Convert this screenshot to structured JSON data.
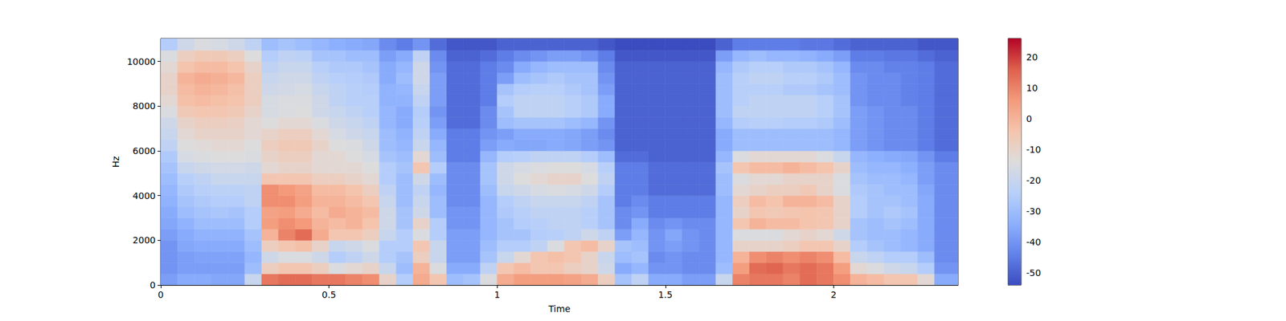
{
  "chart_data": {
    "type": "heatmap",
    "xlabel": "Time",
    "ylabel": "Hz",
    "xlim": [
      0,
      2.37
    ],
    "ylim": [
      0,
      11025
    ],
    "xticks": [
      0,
      0.5,
      1,
      1.5,
      2
    ],
    "yticks": [
      0,
      2000,
      4000,
      6000,
      8000,
      10000
    ],
    "x_edges": [
      0,
      0.05,
      0.1,
      0.15,
      0.2,
      0.25,
      0.3,
      0.35,
      0.4,
      0.45,
      0.5,
      0.55,
      0.6,
      0.65,
      0.7,
      0.75,
      0.8,
      0.85,
      0.9,
      0.95,
      1,
      1.05,
      1.1,
      1.15,
      1.2,
      1.25,
      1.3,
      1.35,
      1.4,
      1.45,
      1.5,
      1.55,
      1.6,
      1.65,
      1.7,
      1.75,
      1.8,
      1.85,
      1.9,
      1.95,
      2,
      2.05,
      2.1,
      2.15,
      2.2,
      2.25,
      2.3,
      2.37
    ],
    "y_edges": [
      0,
      500,
      1000,
      1500,
      2000,
      2500,
      3000,
      3500,
      4000,
      4500,
      5000,
      5500,
      6000,
      6500,
      7000,
      7500,
      8000,
      8500,
      9000,
      9500,
      10000,
      10500,
      11025
    ],
    "cells": [
      [
        -38,
        -40,
        -40,
        -40,
        -38,
        -36,
        -35,
        -33,
        -32,
        -30,
        -28,
        -26,
        -22,
        -20,
        -18,
        -15,
        -12,
        -10,
        -10,
        -12,
        -15,
        -25
      ],
      [
        -35,
        -38,
        -38,
        -36,
        -35,
        -33,
        -30,
        -28,
        -26,
        -24,
        -20,
        -16,
        -14,
        -12,
        -10,
        -6,
        -3,
        -2,
        0,
        -4,
        -8,
        -18
      ],
      [
        -35,
        -38,
        -37,
        -35,
        -33,
        -30,
        -28,
        -26,
        -24,
        -22,
        -18,
        -15,
        -13,
        -10,
        -8,
        -5,
        -2,
        0,
        2,
        -2,
        -6,
        -15
      ],
      [
        -36,
        -38,
        -37,
        -35,
        -33,
        -30,
        -27,
        -25,
        -23,
        -20,
        -17,
        -14,
        -12,
        -10,
        -8,
        -5,
        -3,
        -1,
        1,
        -2,
        -6,
        -16
      ],
      [
        -36,
        -38,
        -37,
        -35,
        -33,
        -30,
        -28,
        -25,
        -23,
        -20,
        -17,
        -14,
        -12,
        -10,
        -9,
        -6,
        -4,
        -3,
        -1,
        -4,
        -8,
        -18
      ],
      [
        -20,
        -30,
        -32,
        -30,
        -28,
        -25,
        -25,
        -22,
        -22,
        -20,
        -18,
        -15,
        -14,
        -12,
        -12,
        -10,
        -8,
        -8,
        -8,
        -10,
        -14,
        -22
      ],
      [
        12,
        -8,
        -18,
        -8,
        0,
        5,
        4,
        8,
        8,
        -5,
        -12,
        -10,
        -8,
        -10,
        -14,
        -16,
        -16,
        -18,
        -20,
        -22,
        -25,
        -30
      ],
      [
        14,
        -5,
        -15,
        -5,
        10,
        8,
        5,
        8,
        6,
        -5,
        -10,
        -8,
        -6,
        -8,
        -12,
        -15,
        -15,
        -17,
        -18,
        -20,
        -22,
        -28
      ],
      [
        14,
        -5,
        -15,
        -3,
        14,
        6,
        2,
        5,
        4,
        -5,
        -10,
        -8,
        -6,
        -8,
        -12,
        -14,
        -15,
        -16,
        -18,
        -20,
        -23,
        -30
      ],
      [
        12,
        -8,
        -18,
        -10,
        2,
        0,
        -2,
        0,
        -2,
        -8,
        -12,
        -12,
        -10,
        -12,
        -15,
        -18,
        -18,
        -20,
        -22,
        -24,
        -28,
        -32
      ],
      [
        12,
        -15,
        -25,
        -20,
        -5,
        -2,
        2,
        0,
        -2,
        -8,
        -12,
        -12,
        -14,
        -16,
        -18,
        -20,
        -22,
        -22,
        -24,
        -26,
        -28,
        -34
      ],
      [
        10,
        -12,
        -22,
        -18,
        -5,
        0,
        0,
        -2,
        -4,
        -10,
        -12,
        -14,
        -15,
        -18,
        -20,
        -22,
        -24,
        -24,
        -25,
        -26,
        -30,
        -35
      ],
      [
        8,
        -10,
        -18,
        -15,
        -8,
        -4,
        -2,
        -5,
        -8,
        -12,
        -14,
        -16,
        -18,
        -20,
        -22,
        -24,
        -24,
        -25,
        -26,
        -28,
        -30,
        -36
      ],
      [
        -10,
        -20,
        -25,
        -25,
        -20,
        -18,
        -18,
        -20,
        -22,
        -25,
        -25,
        -28,
        -30,
        -30,
        -32,
        -32,
        -33,
        -33,
        -35,
        -35,
        -38,
        -42
      ],
      [
        -25,
        -30,
        -28,
        -25,
        -25,
        -28,
        -28,
        -30,
        -30,
        -30,
        -28,
        -30,
        -32,
        -33,
        -35,
        -35,
        -33,
        -32,
        -30,
        -32,
        -35,
        -45
      ],
      [
        2,
        0,
        -8,
        -5,
        -15,
        -10,
        -18,
        -20,
        -22,
        -18,
        -5,
        -12,
        -20,
        -22,
        -24,
        -25,
        -22,
        -20,
        -18,
        -18,
        -22,
        -40
      ],
      [
        -5,
        -15,
        -20,
        -20,
        -25,
        -25,
        -30,
        -30,
        -32,
        -30,
        -25,
        -30,
        -32,
        -35,
        -38,
        -40,
        -38,
        -38,
        -38,
        -40,
        -42,
        -48
      ],
      [
        -30,
        -35,
        -38,
        -38,
        -38,
        -40,
        -40,
        -42,
        -42,
        -42,
        -42,
        -45,
        -45,
        -45,
        -48,
        -48,
        -48,
        -48,
        -48,
        -48,
        -50,
        -52
      ],
      [
        -28,
        -35,
        -38,
        -38,
        -38,
        -40,
        -40,
        -42,
        -42,
        -42,
        -42,
        -45,
        -45,
        -45,
        -48,
        -48,
        -48,
        -48,
        -48,
        -48,
        -50,
        -52
      ],
      [
        -15,
        -22,
        -28,
        -30,
        -32,
        -32,
        -32,
        -32,
        -30,
        -28,
        -28,
        -32,
        -38,
        -40,
        -42,
        -42,
        -45,
        -45,
        -45,
        -45,
        -48,
        -52
      ],
      [
        2,
        -5,
        -20,
        -25,
        -28,
        -28,
        -26,
        -25,
        -20,
        -18,
        -18,
        -25,
        -35,
        -38,
        -30,
        -28,
        -25,
        -28,
        -38,
        -42,
        -45,
        -50
      ],
      [
        5,
        -2,
        -12,
        -25,
        -28,
        -25,
        -24,
        -22,
        -18,
        -14,
        -16,
        -24,
        -36,
        -35,
        -28,
        -22,
        -22,
        -25,
        -30,
        -35,
        -42,
        -50
      ],
      [
        5,
        -5,
        -5,
        -22,
        -25,
        -24,
        -22,
        -20,
        -16,
        -12,
        -15,
        -22,
        -36,
        -35,
        -28,
        -22,
        -22,
        -24,
        -28,
        -32,
        -40,
        -50
      ],
      [
        5,
        -5,
        -3,
        -15,
        -24,
        -22,
        -22,
        -20,
        -15,
        -10,
        -14,
        -22,
        -35,
        -35,
        -28,
        -22,
        -22,
        -24,
        -26,
        -30,
        -38,
        -50
      ],
      [
        4,
        -8,
        -5,
        -5,
        -22,
        -22,
        -22,
        -20,
        -16,
        -10,
        -14,
        -22,
        -36,
        -36,
        -30,
        -24,
        -24,
        -26,
        -28,
        -30,
        -38,
        -50
      ],
      [
        2,
        -10,
        -10,
        -2,
        -18,
        -24,
        -24,
        -22,
        -18,
        -14,
        -16,
        -25,
        -38,
        -38,
        -32,
        -26,
        -26,
        -28,
        -28,
        -30,
        -40,
        -50
      ],
      [
        -8,
        -18,
        -20,
        -10,
        -22,
        -28,
        -28,
        -28,
        -25,
        -22,
        -24,
        -30,
        -40,
        -42,
        -40,
        -35,
        -35,
        -38,
        -40,
        -42,
        -45,
        -52
      ],
      [
        -28,
        -35,
        -30,
        -28,
        -38,
        -42,
        -42,
        -45,
        -45,
        -45,
        -45,
        -48,
        -50,
        -50,
        -50,
        -50,
        -50,
        -50,
        -50,
        -50,
        -52,
        -54
      ],
      [
        -22,
        -32,
        -28,
        -30,
        -32,
        -35,
        -40,
        -42,
        -45,
        -45,
        -45,
        -48,
        -50,
        -50,
        -50,
        -50,
        -50,
        -50,
        -50,
        -50,
        -52,
        -54
      ],
      [
        -35,
        -40,
        -42,
        -40,
        -40,
        -42,
        -45,
        -45,
        -48,
        -48,
        -48,
        -50,
        -50,
        -50,
        -50,
        -50,
        -50,
        -50,
        -50,
        -50,
        -52,
        -54
      ],
      [
        -35,
        -40,
        -40,
        -38,
        -36,
        -40,
        -45,
        -45,
        -48,
        -48,
        -48,
        -50,
        -50,
        -50,
        -50,
        -50,
        -50,
        -50,
        -50,
        -50,
        -52,
        -54
      ],
      [
        -38,
        -42,
        -42,
        -40,
        -40,
        -42,
        -45,
        -45,
        -48,
        -48,
        -48,
        -50,
        -50,
        -50,
        -50,
        -50,
        -50,
        -50,
        -50,
        -50,
        -52,
        -54
      ],
      [
        -38,
        -42,
        -42,
        -42,
        -42,
        -42,
        -45,
        -45,
        -48,
        -48,
        -48,
        -50,
        -50,
        -50,
        -50,
        -50,
        -50,
        -50,
        -50,
        -50,
        -52,
        -54
      ],
      [
        -20,
        -30,
        -32,
        -32,
        -32,
        -32,
        -32,
        -32,
        -30,
        -30,
        -28,
        -32,
        -35,
        -35,
        -32,
        -30,
        -30,
        -30,
        -30,
        -32,
        -38,
        -50
      ],
      [
        10,
        5,
        0,
        -10,
        -15,
        -5,
        -10,
        -8,
        -12,
        -15,
        -5,
        -15,
        -30,
        -30,
        -25,
        -22,
        -24,
        -24,
        -24,
        -26,
        -32,
        -45
      ],
      [
        12,
        14,
        8,
        -10,
        -15,
        0,
        -5,
        -2,
        -10,
        -12,
        -2,
        -12,
        -30,
        -30,
        -24,
        -22,
        -22,
        -24,
        -22,
        -24,
        -30,
        -45
      ],
      [
        12,
        15,
        10,
        -10,
        -15,
        -2,
        -6,
        -4,
        -8,
        -12,
        -2,
        -12,
        -30,
        -30,
        -24,
        -22,
        -22,
        -24,
        -22,
        -24,
        -32,
        -45
      ],
      [
        10,
        12,
        8,
        -8,
        -12,
        -2,
        -5,
        0,
        -8,
        -10,
        0,
        -12,
        -30,
        -30,
        -25,
        -22,
        -22,
        -26,
        -24,
        -26,
        -32,
        -45
      ],
      [
        14,
        14,
        10,
        -5,
        -10,
        -4,
        -4,
        0,
        -6,
        -10,
        -2,
        -12,
        -30,
        -30,
        -25,
        -22,
        -22,
        -26,
        -24,
        -26,
        -33,
        -46
      ],
      [
        12,
        12,
        8,
        -5,
        -12,
        -5,
        -5,
        -2,
        -10,
        -10,
        -4,
        -15,
        -30,
        -30,
        -26,
        -24,
        -24,
        -28,
        -26,
        -28,
        -35,
        -46
      ],
      [
        8,
        5,
        -2,
        -10,
        -18,
        -10,
        -10,
        -10,
        -15,
        -15,
        -10,
        -20,
        -32,
        -32,
        -30,
        -28,
        -28,
        -30,
        -30,
        -32,
        -38,
        -48
      ],
      [
        0,
        -12,
        -20,
        -25,
        -28,
        -28,
        -25,
        -25,
        -26,
        -28,
        -30,
        -32,
        -38,
        -38,
        -38,
        -38,
        -40,
        -40,
        -40,
        -42,
        -45,
        -50
      ],
      [
        -2,
        -15,
        -22,
        -28,
        -30,
        -30,
        -28,
        -28,
        -28,
        -30,
        -32,
        -34,
        -40,
        -40,
        -40,
        -40,
        -42,
        -42,
        -42,
        -42,
        -45,
        -50
      ],
      [
        -5,
        -18,
        -25,
        -30,
        -30,
        -28,
        -26,
        -28,
        -30,
        -30,
        -32,
        -35,
        -42,
        -42,
        -42,
        -42,
        -42,
        -42,
        -42,
        -44,
        -46,
        -50
      ],
      [
        -5,
        -20,
        -25,
        -32,
        -32,
        -30,
        -28,
        -30,
        -30,
        -32,
        -34,
        -36,
        -42,
        -42,
        -42,
        -42,
        -44,
        -44,
        -44,
        -44,
        -46,
        -50
      ],
      [
        -12,
        -25,
        -30,
        -35,
        -35,
        -35,
        -35,
        -35,
        -36,
        -38,
        -38,
        -40,
        -45,
        -45,
        -45,
        -45,
        -45,
        -45,
        -45,
        -45,
        -48,
        -52
      ],
      [
        -35,
        -40,
        -42,
        -42,
        -42,
        -42,
        -42,
        -42,
        -42,
        -42,
        -42,
        -45,
        -48,
        -48,
        -48,
        -48,
        -48,
        -48,
        -48,
        -48,
        -50,
        -52
      ]
    ],
    "colorbar": {
      "range": [
        -54,
        26
      ],
      "ticks": [
        -50,
        -40,
        -30,
        -20,
        -10,
        0,
        10,
        20
      ]
    }
  }
}
